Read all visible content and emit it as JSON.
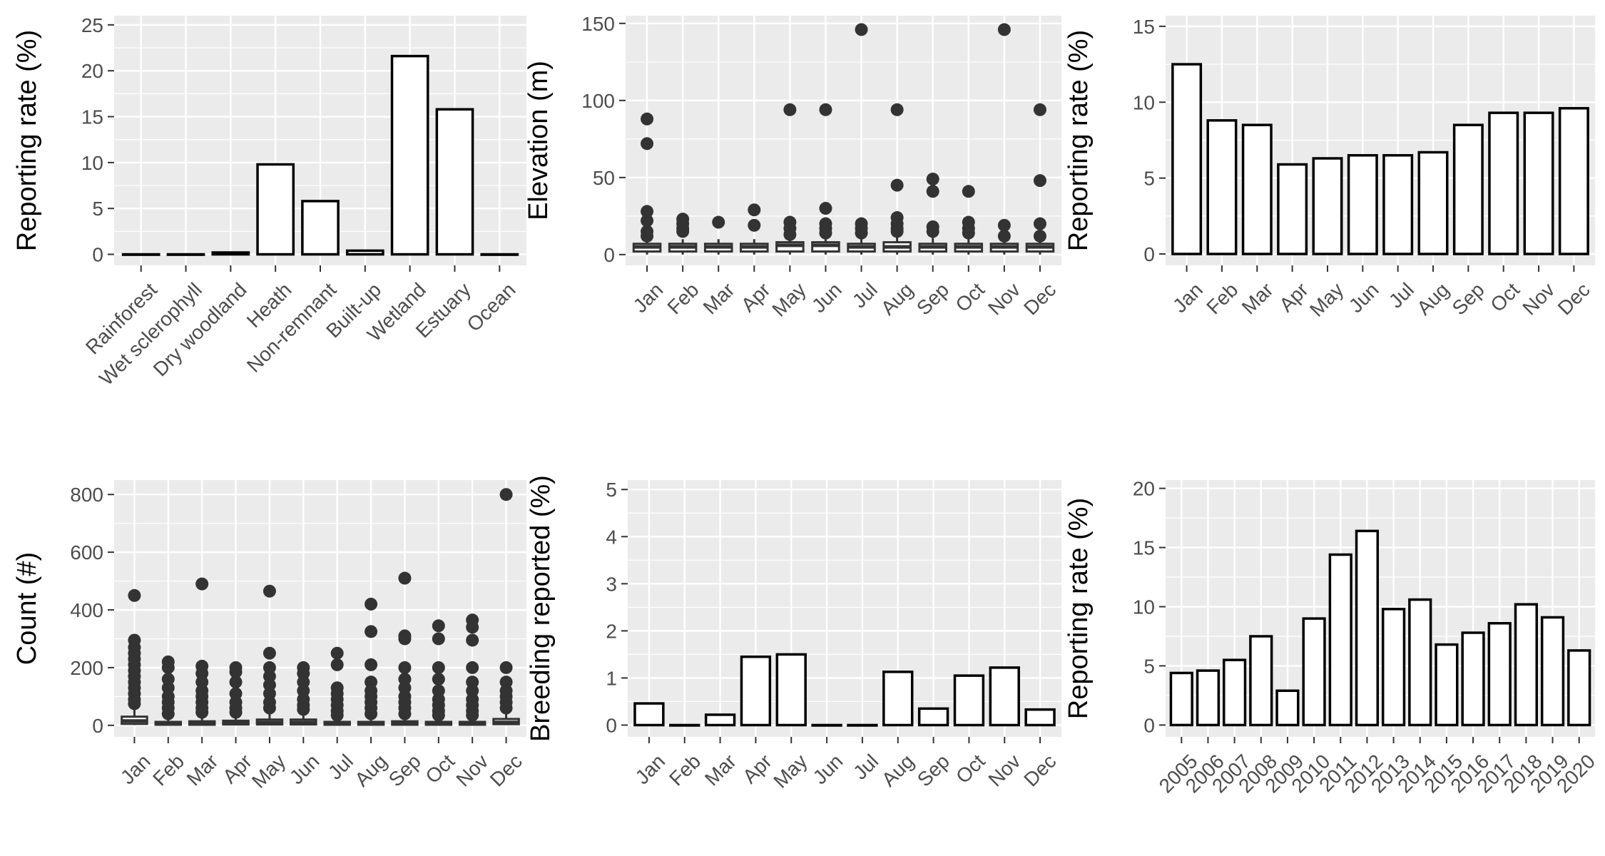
{
  "chart_data": [
    {
      "id": "habitat",
      "type": "bar",
      "categories": [
        "Rainforest",
        "Wet sclerophyll",
        "Dry woodland",
        "Heath",
        "Non-remnant",
        "Built-up",
        "Wetland",
        "Estuary",
        "Ocean"
      ],
      "values": [
        0,
        0,
        0.2,
        9.8,
        5.8,
        0.4,
        21.6,
        15.8,
        0
      ],
      "title": "",
      "xlabel": "",
      "ylabel": "Reporting rate (%)",
      "ylim": [
        -1.2,
        26
      ],
      "yticks": [
        0,
        5,
        10,
        15,
        20,
        25
      ],
      "tick_labels": [
        "0",
        "5",
        "10",
        "15",
        "20",
        "25"
      ],
      "x_tick_rotation": 45,
      "grid": true,
      "legend": "none"
    },
    {
      "id": "elevation",
      "type": "box",
      "categories": [
        "Jan",
        "Feb",
        "Mar",
        "Apr",
        "May",
        "Jun",
        "Jul",
        "Aug",
        "Sep",
        "Oct",
        "Nov",
        "Dec"
      ],
      "boxes": [
        {
          "q1": 2,
          "median": 5,
          "q3": 7,
          "whisker_low": 0,
          "whisker_high": 10,
          "outliers": [
            88,
            72,
            28,
            22,
            15,
            12
          ]
        },
        {
          "q1": 2,
          "median": 5,
          "q3": 7,
          "whisker_low": 0,
          "whisker_high": 10,
          "outliers": [
            23,
            20,
            17,
            15
          ]
        },
        {
          "q1": 2,
          "median": 5,
          "q3": 7,
          "whisker_low": 0,
          "whisker_high": 10,
          "outliers": [
            21
          ]
        },
        {
          "q1": 2,
          "median": 5,
          "q3": 7,
          "whisker_low": 0,
          "whisker_high": 10,
          "outliers": [
            29,
            19
          ]
        },
        {
          "q1": 2,
          "median": 6,
          "q3": 8,
          "whisker_low": 0,
          "whisker_high": 11,
          "outliers": [
            94,
            21,
            17,
            13
          ]
        },
        {
          "q1": 2,
          "median": 6,
          "q3": 8,
          "whisker_low": 0,
          "whisker_high": 12,
          "outliers": [
            94,
            30,
            20,
            17,
            14
          ]
        },
        {
          "q1": 2,
          "median": 5,
          "q3": 7,
          "whisker_low": 0,
          "whisker_high": 11,
          "outliers": [
            146,
            20,
            17,
            14
          ]
        },
        {
          "q1": 2,
          "median": 5,
          "q3": 8,
          "whisker_low": 0,
          "whisker_high": 13,
          "outliers": [
            94,
            45,
            24,
            20,
            17,
            15
          ]
        },
        {
          "q1": 2,
          "median": 5,
          "q3": 7,
          "whisker_low": 0,
          "whisker_high": 11,
          "outliers": [
            49,
            41,
            18,
            15
          ]
        },
        {
          "q1": 2,
          "median": 5,
          "q3": 7,
          "whisker_low": 0,
          "whisker_high": 11,
          "outliers": [
            41,
            21,
            17,
            14
          ]
        },
        {
          "q1": 2,
          "median": 5,
          "q3": 7,
          "whisker_low": 0,
          "whisker_high": 10,
          "outliers": [
            146,
            19,
            12
          ]
        },
        {
          "q1": 2,
          "median": 5,
          "q3": 7,
          "whisker_low": 0,
          "whisker_high": 10,
          "outliers": [
            94,
            48,
            20,
            12
          ]
        }
      ],
      "title": "",
      "xlabel": "",
      "ylabel": "Elevation (m)",
      "ylim": [
        -7,
        155
      ],
      "yticks": [
        0,
        50,
        100,
        150
      ],
      "tick_labels": [
        "0",
        "50",
        "100",
        "150"
      ],
      "x_tick_rotation": 45,
      "grid": true,
      "legend": "none"
    },
    {
      "id": "month-rate",
      "type": "bar",
      "categories": [
        "Jan",
        "Feb",
        "Mar",
        "Apr",
        "May",
        "Jun",
        "Jul",
        "Aug",
        "Sep",
        "Oct",
        "Nov",
        "Dec"
      ],
      "values": [
        12.5,
        8.8,
        8.5,
        5.9,
        6.3,
        6.5,
        6.5,
        6.7,
        8.5,
        9.3,
        9.3,
        9.6
      ],
      "title": "",
      "xlabel": "",
      "ylabel": "Reporting rate (%)",
      "ylim": [
        -0.75,
        15.7
      ],
      "yticks": [
        0,
        5,
        10,
        15
      ],
      "tick_labels": [
        "0",
        "5",
        "10",
        "15"
      ],
      "x_tick_rotation": 45,
      "grid": true,
      "legend": "none"
    },
    {
      "id": "count",
      "type": "box",
      "categories": [
        "Jan",
        "Feb",
        "Mar",
        "Apr",
        "May",
        "Jun",
        "Jul",
        "Aug",
        "Sep",
        "Oct",
        "Nov",
        "Dec"
      ],
      "boxes": [
        {
          "q1": 5,
          "median": 15,
          "q3": 30,
          "whisker_low": 1,
          "whisker_high": 60,
          "outliers": [
            450,
            295,
            270,
            250,
            230,
            210,
            190,
            170,
            150,
            130,
            110,
            90,
            75
          ]
        },
        {
          "q1": 2,
          "median": 6,
          "q3": 12,
          "whisker_low": 1,
          "whisker_high": 25,
          "outliers": [
            220,
            200,
            160,
            130,
            100,
            80,
            60,
            40
          ]
        },
        {
          "q1": 2,
          "median": 6,
          "q3": 14,
          "whisker_low": 1,
          "whisker_high": 30,
          "outliers": [
            490,
            205,
            180,
            150,
            120,
            100,
            80,
            60,
            45
          ]
        },
        {
          "q1": 3,
          "median": 8,
          "q3": 16,
          "whisker_low": 1,
          "whisker_high": 32,
          "outliers": [
            200,
            185,
            150,
            110,
            80,
            60,
            45
          ]
        },
        {
          "q1": 3,
          "median": 10,
          "q3": 20,
          "whisker_low": 1,
          "whisker_high": 40,
          "outliers": [
            465,
            250,
            200,
            170,
            140,
            110,
            80,
            60
          ]
        },
        {
          "q1": 3,
          "median": 10,
          "q3": 20,
          "whisker_low": 1,
          "whisker_high": 40,
          "outliers": [
            200,
            180,
            150,
            120,
            90,
            70,
            55
          ]
        },
        {
          "q1": 2,
          "median": 6,
          "q3": 12,
          "whisker_low": 1,
          "whisker_high": 25,
          "outliers": [
            250,
            210,
            130,
            110,
            90,
            70,
            50,
            35
          ]
        },
        {
          "q1": 2,
          "median": 6,
          "q3": 12,
          "whisker_low": 1,
          "whisker_high": 25,
          "outliers": [
            420,
            325,
            210,
            150,
            120,
            100,
            80,
            60,
            40
          ]
        },
        {
          "q1": 2,
          "median": 6,
          "q3": 14,
          "whisker_low": 1,
          "whisker_high": 28,
          "outliers": [
            510,
            310,
            300,
            200,
            160,
            130,
            100,
            80,
            60,
            40
          ]
        },
        {
          "q1": 2,
          "median": 6,
          "q3": 12,
          "whisker_low": 1,
          "whisker_high": 25,
          "outliers": [
            345,
            300,
            200,
            160,
            120,
            90,
            70,
            50,
            35
          ]
        },
        {
          "q1": 2,
          "median": 6,
          "q3": 12,
          "whisker_low": 1,
          "whisker_high": 25,
          "outliers": [
            365,
            340,
            295,
            200,
            150,
            120,
            90,
            70,
            50,
            35
          ]
        },
        {
          "q1": 4,
          "median": 10,
          "q3": 22,
          "whisker_low": 1,
          "whisker_high": 45,
          "outliers": [
            800,
            200,
            150,
            120,
            100,
            80,
            60
          ]
        }
      ],
      "title": "",
      "xlabel": "",
      "ylabel": "Count (#)",
      "ylim": [
        -40,
        850
      ],
      "yticks": [
        0,
        200,
        400,
        600,
        800
      ],
      "tick_labels": [
        "0",
        "200",
        "400",
        "600",
        "800"
      ],
      "x_tick_rotation": 45,
      "grid": true,
      "legend": "none"
    },
    {
      "id": "breeding",
      "type": "bar",
      "categories": [
        "Jan",
        "Feb",
        "Mar",
        "Apr",
        "May",
        "Jun",
        "Jul",
        "Aug",
        "Sep",
        "Oct",
        "Nov",
        "Dec"
      ],
      "values": [
        0.46,
        0,
        0.22,
        1.45,
        1.5,
        0,
        0,
        1.13,
        0.35,
        1.05,
        1.22,
        0.33
      ],
      "title": "",
      "xlabel": "",
      "ylabel": "Breeding reported (%)",
      "ylim": [
        -0.25,
        5.2
      ],
      "yticks": [
        0,
        1,
        2,
        3,
        4,
        5
      ],
      "tick_labels": [
        "0",
        "1",
        "2",
        "3",
        "4",
        "5"
      ],
      "x_tick_rotation": 45,
      "grid": true,
      "legend": "none"
    },
    {
      "id": "year-rate",
      "type": "bar",
      "categories": [
        "2005",
        "2006",
        "2007",
        "2008",
        "2009",
        "2010",
        "2011",
        "2012",
        "2013",
        "2014",
        "2015",
        "2016",
        "2017",
        "2018",
        "2019",
        "2020"
      ],
      "values": [
        4.4,
        4.6,
        5.5,
        7.5,
        2.9,
        9.0,
        14.4,
        16.4,
        9.8,
        10.6,
        6.8,
        7.8,
        8.6,
        10.2,
        9.1,
        6.3
      ],
      "title": "",
      "xlabel": "",
      "ylabel": "Reporting rate (%)",
      "ylim": [
        -1,
        20.7
      ],
      "yticks": [
        0,
        5,
        10,
        15,
        20
      ],
      "tick_labels": [
        "0",
        "5",
        "10",
        "15",
        "20"
      ],
      "x_tick_rotation": 45,
      "grid": true,
      "legend": "none"
    }
  ]
}
